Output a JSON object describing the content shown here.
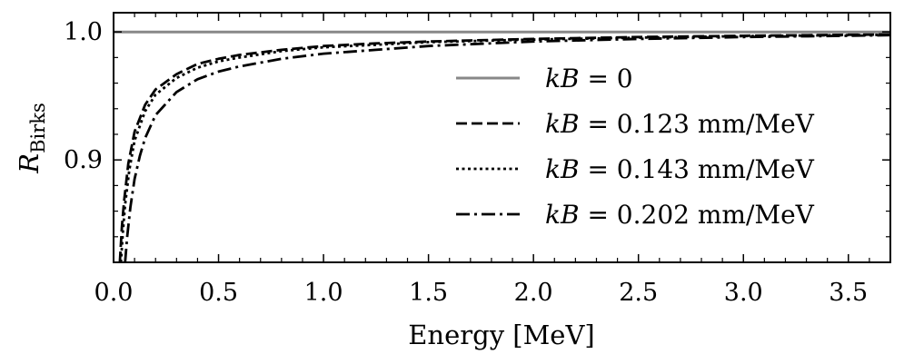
{
  "chart_data": {
    "type": "line",
    "xlabel": "Energy [MeV]",
    "ylabel": {
      "symbol": "R",
      "subscript": "Birks"
    },
    "xlim": [
      0.0,
      3.7
    ],
    "ylim": [
      0.82,
      1.015
    ],
    "xticks": [
      0.0,
      0.5,
      1.0,
      1.5,
      2.0,
      2.5,
      3.0,
      3.5
    ],
    "xtick_labels": [
      "0.0",
      "0.5",
      "1.0",
      "1.5",
      "2.0",
      "2.5",
      "3.0",
      "3.5"
    ],
    "yticks": [
      0.9,
      1.0
    ],
    "ytick_labels": [
      "0.9",
      "1.0"
    ],
    "grid": false,
    "legend_position": "right",
    "series": [
      {
        "name": {
          "var": "kB",
          "rest": " = 0"
        },
        "style": "solid",
        "color": "#888888",
        "x": [
          0.0,
          3.7
        ],
        "y": [
          1.0,
          1.0
        ]
      },
      {
        "name": {
          "var": "kB",
          "rest": " = 0.123 mm/MeV"
        },
        "style": "dashed",
        "color": "#000000",
        "x": [
          0.03,
          0.04,
          0.05,
          0.07,
          0.1,
          0.15,
          0.2,
          0.3,
          0.4,
          0.5,
          0.6,
          0.8,
          1.0,
          1.25,
          1.5,
          2.0,
          2.5,
          3.0,
          3.5,
          3.7
        ],
        "y": [
          0.82,
          0.848,
          0.868,
          0.897,
          0.922,
          0.943,
          0.955,
          0.967,
          0.975,
          0.979,
          0.982,
          0.986,
          0.989,
          0.991,
          0.9925,
          0.9945,
          0.996,
          0.997,
          0.9978,
          0.998
        ]
      },
      {
        "name": {
          "var": "kB",
          "rest": " = 0.143 mm/MeV"
        },
        "style": "dotted",
        "color": "#000000",
        "x": [
          0.035,
          0.045,
          0.055,
          0.075,
          0.1,
          0.15,
          0.2,
          0.3,
          0.4,
          0.5,
          0.6,
          0.8,
          1.0,
          1.25,
          1.5,
          2.0,
          2.5,
          3.0,
          3.5,
          3.7
        ],
        "y": [
          0.82,
          0.845,
          0.865,
          0.892,
          0.915,
          0.938,
          0.951,
          0.964,
          0.972,
          0.977,
          0.98,
          0.985,
          0.988,
          0.99,
          0.992,
          0.994,
          0.9955,
          0.9967,
          0.9975,
          0.9978
        ]
      },
      {
        "name": {
          "var": "kB",
          "rest": " = 0.202 mm/MeV"
        },
        "style": "dashdot",
        "color": "#000000",
        "x": [
          0.055,
          0.065,
          0.08,
          0.1,
          0.125,
          0.15,
          0.2,
          0.3,
          0.4,
          0.5,
          0.6,
          0.8,
          1.0,
          1.25,
          1.5,
          2.0,
          2.5,
          3.0,
          3.5,
          3.7
        ],
        "y": [
          0.82,
          0.84,
          0.863,
          0.885,
          0.903,
          0.917,
          0.935,
          0.953,
          0.963,
          0.969,
          0.973,
          0.979,
          0.983,
          0.986,
          0.989,
          0.9925,
          0.9945,
          0.996,
          0.997,
          0.9975
        ]
      }
    ]
  }
}
